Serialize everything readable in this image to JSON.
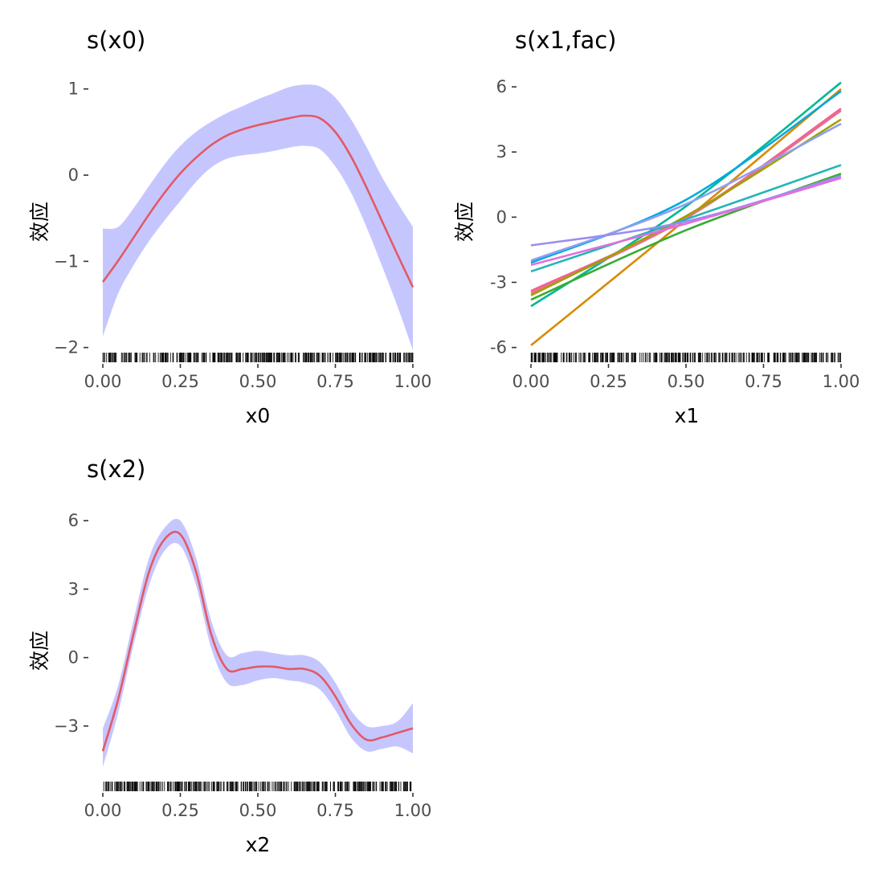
{
  "chart_data": [
    {
      "type": "area",
      "title": "s(x0)",
      "xlabel": "x0",
      "ylabel": "效应",
      "xlim": [
        0,
        1
      ],
      "ylim": [
        -2.05,
        1.1
      ],
      "x_ticks": [
        "0.00",
        "0.25",
        "0.50",
        "0.75",
        "1.00"
      ],
      "y_ticks": [
        "−2",
        "−1",
        "0",
        "1"
      ],
      "y_tick_values": [
        -2,
        -1,
        0,
        1
      ],
      "band_color": "#c6c6ff",
      "line_color": "#e15a66",
      "series": [
        {
          "x": [
            0,
            0.05,
            0.1,
            0.15,
            0.2,
            0.25,
            0.3,
            0.35,
            0.4,
            0.45,
            0.5,
            0.55,
            0.6,
            0.65,
            0.7,
            0.75,
            0.8,
            0.85,
            0.9,
            0.95,
            1
          ],
          "y": [
            -1.24,
            -0.99,
            -0.72,
            -0.45,
            -0.2,
            0.02,
            0.2,
            0.35,
            0.46,
            0.53,
            0.58,
            0.62,
            0.66,
            0.69,
            0.66,
            0.5,
            0.22,
            -0.14,
            -0.53,
            -0.92,
            -1.3
          ],
          "lower": [
            -1.87,
            -1.37,
            -1.04,
            -0.76,
            -0.52,
            -0.3,
            -0.08,
            0.09,
            0.19,
            0.23,
            0.25,
            0.28,
            0.32,
            0.34,
            0.3,
            0.1,
            -0.2,
            -0.6,
            -1.05,
            -1.52,
            -2.03
          ],
          "upper": [
            -0.62,
            -0.6,
            -0.38,
            -0.12,
            0.13,
            0.34,
            0.5,
            0.62,
            0.72,
            0.8,
            0.88,
            0.95,
            1.02,
            1.05,
            1.03,
            0.9,
            0.65,
            0.33,
            -0.02,
            -0.32,
            -0.6
          ]
        }
      ],
      "rug_seed": 11
    },
    {
      "type": "line",
      "title": "s(x1,fac)",
      "xlabel": "x1",
      "ylabel": "效应",
      "xlim": [
        0,
        1
      ],
      "ylim": [
        -6.2,
        6.3
      ],
      "x_ticks": [
        "0.00",
        "0.25",
        "0.50",
        "0.75",
        "1.00"
      ],
      "y_ticks": [
        "-6",
        "-3",
        "0",
        "3",
        "6"
      ],
      "y_tick_values": [
        -6,
        -3,
        0,
        3,
        6
      ],
      "series": [
        {
          "color": "#d98a00",
          "x": [
            0,
            0.5,
            1
          ],
          "y": [
            -5.9,
            -0.1,
            5.9
          ]
        },
        {
          "color": "#00b894",
          "x": [
            0,
            0.5,
            1
          ],
          "y": [
            -4.1,
            0.5,
            6.2
          ]
        },
        {
          "color": "#00a9e0",
          "x": [
            0,
            0.5,
            1
          ],
          "y": [
            -2.1,
            0.8,
            5.8
          ]
        },
        {
          "color": "#f06292",
          "x": [
            0,
            0.5,
            1
          ],
          "y": [
            -3.4,
            0.0,
            5.0
          ]
        },
        {
          "color": "#e8708a",
          "x": [
            0,
            0.5,
            1
          ],
          "y": [
            -3.5,
            -0.05,
            4.9
          ]
        },
        {
          "color": "#a0a000",
          "x": [
            0,
            0.5,
            1
          ],
          "y": [
            -3.6,
            0.05,
            4.5
          ]
        },
        {
          "color": "#8fa0f0",
          "x": [
            0,
            0.5,
            1
          ],
          "y": [
            -2.0,
            0.6,
            4.3
          ]
        },
        {
          "color": "#21b6b6",
          "x": [
            0,
            0.5,
            1
          ],
          "y": [
            -2.5,
            -0.1,
            2.4
          ]
        },
        {
          "color": "#3aaa35",
          "x": [
            0,
            0.5,
            1
          ],
          "y": [
            -3.8,
            -0.6,
            2.0
          ]
        },
        {
          "color": "#9b8cf0",
          "x": [
            0,
            0.5,
            1
          ],
          "y": [
            -1.3,
            -0.2,
            1.9
          ]
        },
        {
          "color": "#e36ee0",
          "x": [
            0,
            0.5,
            1
          ],
          "y": [
            -2.2,
            -0.3,
            1.8
          ]
        }
      ],
      "rug_seed": 23
    },
    {
      "type": "area",
      "title": "s(x2)",
      "xlabel": "x2",
      "ylabel": "效应",
      "xlim": [
        0,
        1
      ],
      "ylim": [
        -5.4,
        6.5
      ],
      "x_ticks": [
        "0.00",
        "0.25",
        "0.50",
        "0.75",
        "1.00"
      ],
      "y_ticks": [
        "−3",
        "0",
        "3",
        "6"
      ],
      "y_tick_values": [
        -3,
        0,
        3,
        6
      ],
      "band_color": "#c6c6ff",
      "line_color": "#e15a66",
      "series": [
        {
          "x": [
            0,
            0.05,
            0.1,
            0.15,
            0.2,
            0.25,
            0.3,
            0.35,
            0.4,
            0.45,
            0.5,
            0.55,
            0.6,
            0.65,
            0.7,
            0.75,
            0.8,
            0.85,
            0.9,
            0.95,
            1
          ],
          "y": [
            -4.1,
            -1.8,
            1.1,
            3.8,
            5.2,
            5.4,
            3.8,
            1.0,
            -0.5,
            -0.5,
            -0.4,
            -0.4,
            -0.5,
            -0.5,
            -0.8,
            -1.7,
            -2.9,
            -3.6,
            -3.5,
            -3.3,
            -3.1
          ],
          "lower": [
            -4.8,
            -2.4,
            0.6,
            3.2,
            4.7,
            4.9,
            3.2,
            0.4,
            -1.1,
            -1.2,
            -1.0,
            -0.9,
            -1.0,
            -1.1,
            -1.4,
            -2.3,
            -3.5,
            -4.1,
            -4.0,
            -3.9,
            -4.2
          ],
          "upper": [
            -3.1,
            -1.2,
            1.7,
            4.4,
            5.7,
            6.0,
            4.4,
            1.6,
            0.1,
            0.2,
            0.3,
            0.2,
            0.1,
            0.1,
            -0.2,
            -1.1,
            -2.3,
            -3.0,
            -3.0,
            -2.8,
            -2.0
          ]
        }
      ],
      "rug_seed": 37
    }
  ]
}
